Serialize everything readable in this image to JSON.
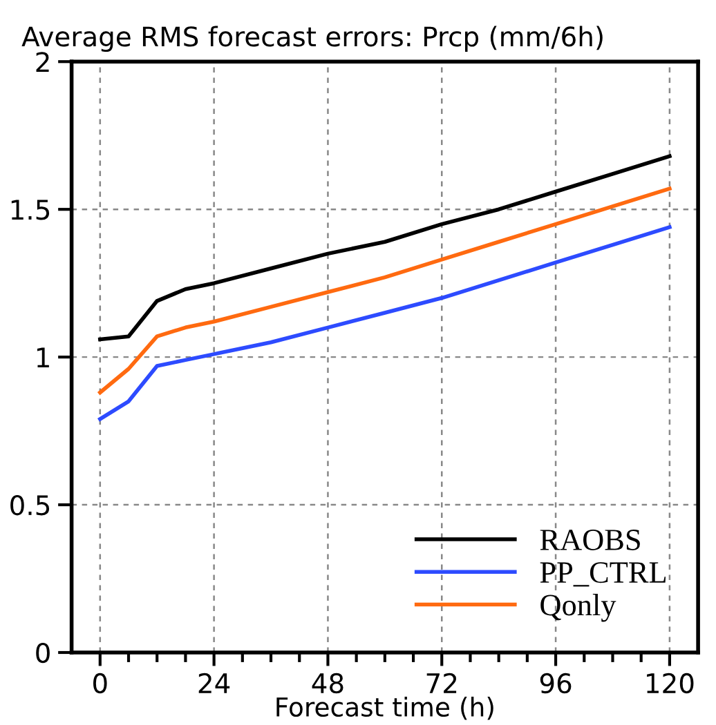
{
  "chart_data": {
    "type": "line",
    "title": "Average RMS forecast errors: Prcp (mm/6h)",
    "xlabel": "Forecast time (h)",
    "x": [
      0,
      6,
      12,
      18,
      24,
      36,
      48,
      60,
      72,
      84,
      96,
      108,
      120
    ],
    "series": [
      {
        "name": "RAOBS",
        "color": "#000000",
        "values": [
          1.06,
          1.07,
          1.19,
          1.23,
          1.25,
          1.3,
          1.35,
          1.39,
          1.45,
          1.5,
          1.56,
          1.62,
          1.68
        ]
      },
      {
        "name": "PP_CTRL",
        "color": "#2d4bff",
        "values": [
          0.79,
          0.85,
          0.97,
          0.99,
          1.01,
          1.05,
          1.1,
          1.15,
          1.2,
          1.26,
          1.32,
          1.38,
          1.44
        ]
      },
      {
        "name": "Qonly",
        "color": "#ff6a10",
        "values": [
          0.88,
          0.96,
          1.07,
          1.1,
          1.12,
          1.17,
          1.22,
          1.27,
          1.33,
          1.39,
          1.45,
          1.51,
          1.57
        ]
      }
    ],
    "xlim": [
      -6,
      126
    ],
    "xticks": [
      0,
      {
        "value": 6,
        "label": null
      },
      {
        "value": 12,
        "label": null
      },
      {
        "value": 18,
        "label": null
      },
      24,
      {
        "value": 30,
        "label": null
      },
      {
        "value": 36,
        "label": null
      },
      {
        "value": 42,
        "label": null
      },
      48,
      {
        "value": 54,
        "label": null
      },
      {
        "value": 60,
        "label": null
      },
      {
        "value": 66,
        "label": null
      },
      72,
      {
        "value": 78,
        "label": null
      },
      {
        "value": 84,
        "label": null
      },
      {
        "value": 90,
        "label": null
      },
      96,
      {
        "value": 102,
        "label": null
      },
      {
        "value": 108,
        "label": null
      },
      {
        "value": 114,
        "label": null
      },
      120
    ],
    "ylim": [
      0,
      2
    ],
    "yticks": [
      0,
      0.5,
      1,
      1.5,
      2
    ],
    "grid": true,
    "legend": "bottom right",
    "marker": "none",
    "line_style": "solid"
  }
}
